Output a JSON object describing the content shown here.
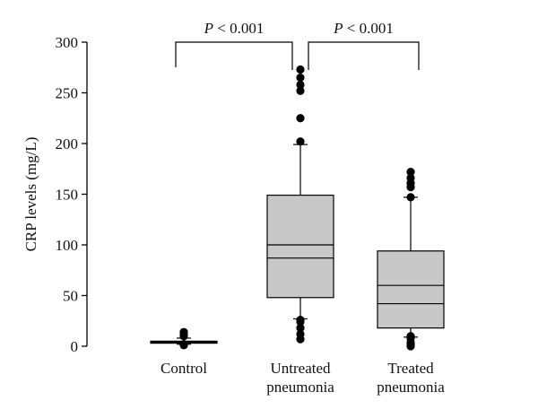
{
  "chart_data": {
    "type": "box",
    "title": "",
    "xlabel": "",
    "ylabel": "CRP levels (mg/L)",
    "ylim": [
      0,
      300
    ],
    "yticks": [
      0,
      50,
      100,
      150,
      200,
      250,
      300
    ],
    "categories": [
      {
        "lines": [
          "Control"
        ]
      },
      {
        "lines": [
          "Untreated",
          "pneumonia"
        ]
      },
      {
        "lines": [
          "Treated",
          "pneumonia"
        ]
      }
    ],
    "boxes": [
      {
        "whisker_low": 2,
        "q1": 3,
        "median": 4,
        "mean": 4.5,
        "q3": 5,
        "whisker_high": 8,
        "outliers": [
          1,
          2,
          10,
          12,
          14
        ]
      },
      {
        "whisker_low": 27,
        "q1": 48,
        "median": 87,
        "mean": 100,
        "q3": 149,
        "whisker_high": 199,
        "outliers": [
          7,
          12,
          18,
          24,
          26,
          202,
          225,
          252,
          258,
          265,
          273
        ]
      },
      {
        "whisker_low": 9,
        "q1": 18,
        "median": 42,
        "mean": 60,
        "q3": 94,
        "whisker_high": 147,
        "outliers": [
          0,
          2,
          4,
          8,
          10,
          147,
          157,
          161,
          166,
          172
        ]
      }
    ],
    "comparisons": [
      {
        "from": 0,
        "to": 1,
        "label_italic": "P",
        "label_rest": " < 0.001"
      },
      {
        "from": 1,
        "to": 2,
        "label_italic": "P",
        "label_rest": " < 0.001"
      }
    ],
    "colors": {
      "box_fill": "#c8c8c8",
      "stroke": "#000000",
      "outlier": "#000000"
    },
    "grid": false,
    "legend": "none"
  }
}
